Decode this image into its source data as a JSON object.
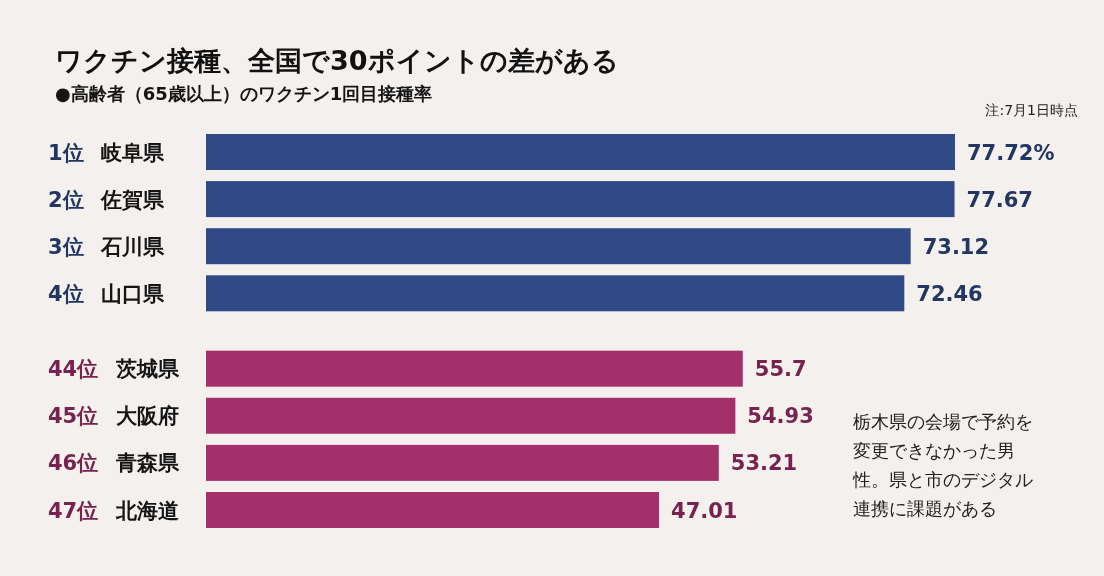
{
  "chart_data": {
    "type": "bar",
    "orientation": "horizontal",
    "title": "ワクチン接種、全国で30ポイントの差がある",
    "subtitle": "●高齢者（65歳以上）のワクチン1回目接種率",
    "categories": [
      "1位 岐阜県",
      "2位 佐賀県",
      "3位 石川県",
      "4位 山口県",
      null,
      "44位 茨城県",
      "45位 大阪府",
      "46位 青森県",
      "47位 北海道"
    ],
    "values": [
      77.72,
      77.67,
      73.12,
      72.46,
      null,
      55.7,
      54.93,
      53.21,
      47.01
    ],
    "value_labels": [
      "77.72%",
      "77.67",
      "73.12",
      "72.46",
      null,
      "55.7",
      "54.93",
      "53.21",
      "47.01"
    ],
    "colors": [
      "#2f4a86",
      "#2f4a86",
      "#2f4a86",
      "#2f4a86",
      null,
      "#a3306a",
      "#a3306a",
      "#a3306a",
      "#a3306a"
    ],
    "annotations": [
      "注:7月1日時点",
      "栃木県の会場で予約を変更できなかった男性。県と市のデジタル連携に課題がある"
    ]
  }
}
